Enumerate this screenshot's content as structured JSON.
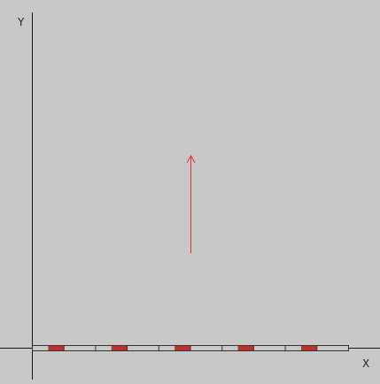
{
  "axes": {
    "x_label": "X",
    "y_label": "Y"
  },
  "colors": {
    "background": "#c8c8c8",
    "axis": "#1a1a1a",
    "vector": "#e03030",
    "bar_fill": "#c8c8c8",
    "bar_stroke": "#333333",
    "marker": "#c0302c"
  },
  "bar": {
    "segment_count": 10,
    "marked_segments": [
      0,
      2,
      4,
      6,
      8
    ]
  },
  "vector": {
    "direction": "up",
    "icon": "arrow-up-icon"
  }
}
